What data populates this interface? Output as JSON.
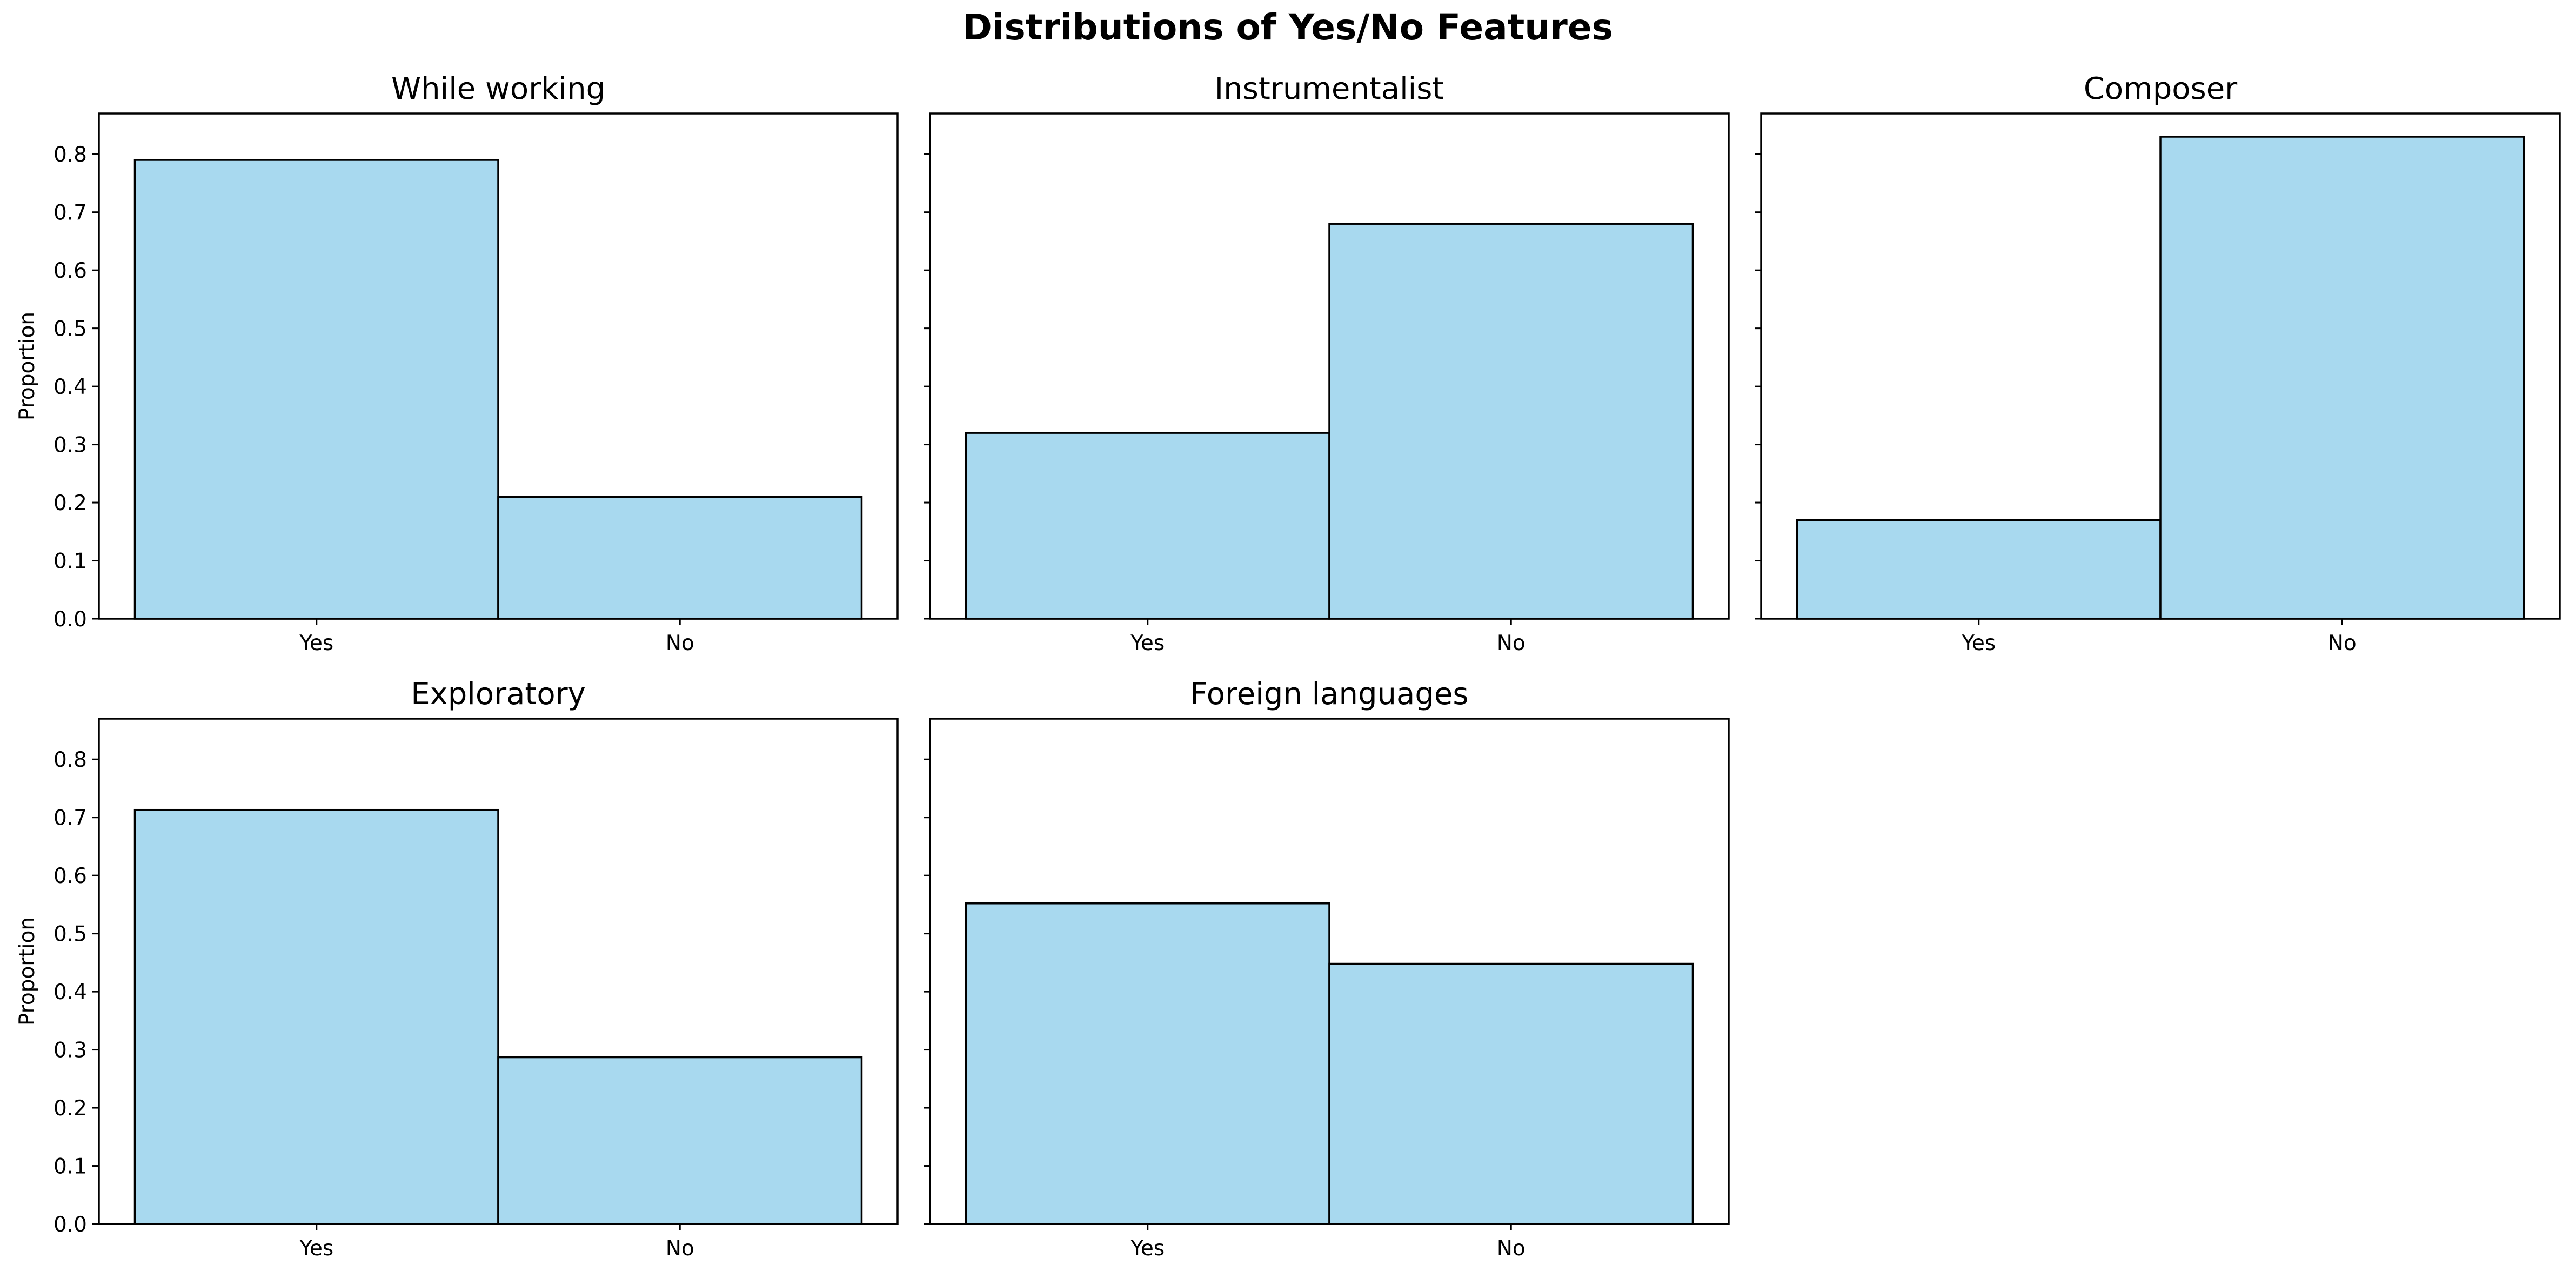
{
  "figure_title": "Distributions of Yes/No Features",
  "bar_color": "#a8d9ef",
  "edge_color": "#000000",
  "chart_data": [
    {
      "type": "bar",
      "title": "While working",
      "categories": [
        "Yes",
        "No"
      ],
      "values": [
        0.79,
        0.21
      ],
      "ylabel": "Proportion",
      "yticks": [
        "0.0",
        "0.1",
        "0.2",
        "0.3",
        "0.4",
        "0.5",
        "0.6",
        "0.7",
        "0.8"
      ],
      "ylim": [
        0,
        0.87
      ]
    },
    {
      "type": "bar",
      "title": "Instrumentalist",
      "categories": [
        "Yes",
        "No"
      ],
      "values": [
        0.32,
        0.68
      ],
      "ylabel": "",
      "yticks": [],
      "ylim": [
        0,
        0.87
      ]
    },
    {
      "type": "bar",
      "title": "Composer",
      "categories": [
        "Yes",
        "No"
      ],
      "values": [
        0.17,
        0.83
      ],
      "ylabel": "",
      "yticks": [],
      "ylim": [
        0,
        0.87
      ]
    },
    {
      "type": "bar",
      "title": "Exploratory",
      "categories": [
        "Yes",
        "No"
      ],
      "values": [
        0.713,
        0.287
      ],
      "ylabel": "Proportion",
      "yticks": [
        "0.0",
        "0.1",
        "0.2",
        "0.3",
        "0.4",
        "0.5",
        "0.6",
        "0.7",
        "0.8"
      ],
      "ylim": [
        0,
        0.87
      ]
    },
    {
      "type": "bar",
      "title": "Foreign languages",
      "categories": [
        "Yes",
        "No"
      ],
      "values": [
        0.552,
        0.448
      ],
      "ylabel": "",
      "yticks": [],
      "ylim": [
        0,
        0.87
      ]
    }
  ]
}
